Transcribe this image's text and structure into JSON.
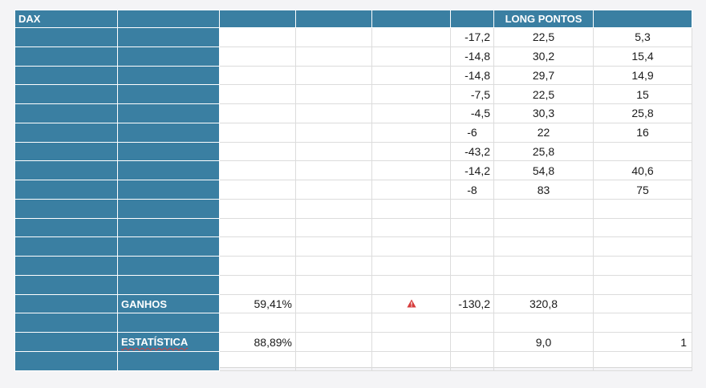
{
  "sheet": {
    "header": {
      "col1": "DAX",
      "col7": "LONG PONTOS"
    },
    "rows": [
      {
        "a": "-17,2",
        "b": "22,5",
        "c": "5,3"
      },
      {
        "a": "-14,8",
        "b": "30,2",
        "c": "15,4"
      },
      {
        "a": "-14,8",
        "b": "29,7",
        "c": "14,9"
      },
      {
        "a": "-7,5",
        "b": "22,5",
        "c": "15"
      },
      {
        "a": "-4,5",
        "b": "30,3",
        "c": "25,8"
      },
      {
        "a": "-6",
        "b": "22",
        "c": "16"
      },
      {
        "a": "-43,2",
        "b": "25,8",
        "c": ""
      },
      {
        "a": "-14,2",
        "b": "54,8",
        "c": "40,6"
      },
      {
        "a": "-8",
        "b": "83",
        "c": "75"
      }
    ],
    "ganhos": {
      "label": "GANHOS",
      "pct": "59,41%",
      "warning_icon": "warning-triangle-icon",
      "sum_a": "-130,2",
      "sum_b": "320,8"
    },
    "estatistica": {
      "label": "ESTATÍSTICA",
      "pct": "88,89%",
      "val_b": "9,0",
      "val_last": "1"
    },
    "colors": {
      "header_blue": "#3a7fa2",
      "warning_red": "#d63c3c"
    }
  }
}
